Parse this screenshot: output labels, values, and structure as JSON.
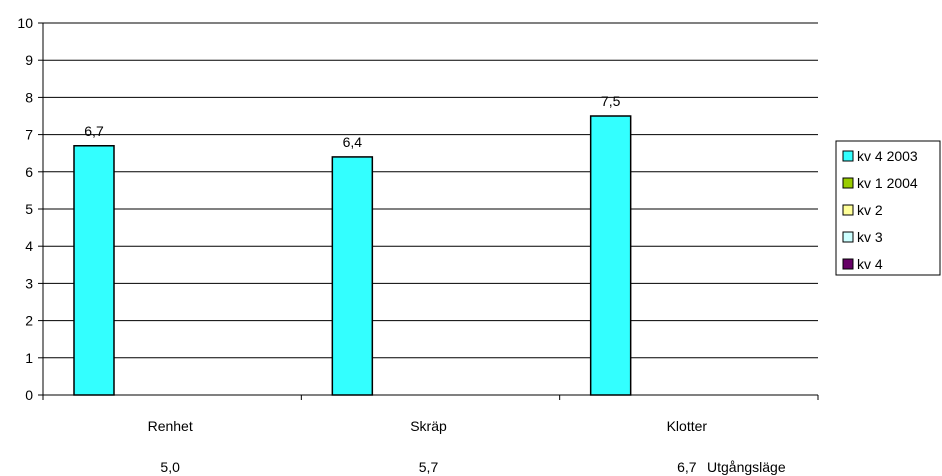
{
  "chart_data": {
    "type": "bar",
    "categories": [
      "Renhet",
      "Skräp",
      "Klotter"
    ],
    "series": [
      {
        "name": "kv 4 2003",
        "color": "#33ffff",
        "values": [
          6.7,
          6.4,
          7.5
        ]
      },
      {
        "name": "kv 1 2004",
        "color": "#99cc00",
        "values": [
          null,
          null,
          null
        ]
      },
      {
        "name": "kv 2",
        "color": "#ffff99",
        "values": [
          null,
          null,
          null
        ]
      },
      {
        "name": "kv 3",
        "color": "#ccffff",
        "values": [
          null,
          null,
          null
        ]
      },
      {
        "name": "kv 4",
        "color": "#660066",
        "values": [
          null,
          null,
          null
        ]
      }
    ],
    "data_labels": [
      "6,7",
      "6,4",
      "7,5"
    ],
    "ylim": [
      0,
      10
    ],
    "yticks": [
      "0",
      "1",
      "2",
      "3",
      "4",
      "5",
      "6",
      "7",
      "8",
      "9",
      "10"
    ],
    "grid": true,
    "legend": "right",
    "baseline_row": {
      "label": "Utgångsläge",
      "values": [
        "5,0",
        "5,7",
        "6,7"
      ]
    }
  }
}
